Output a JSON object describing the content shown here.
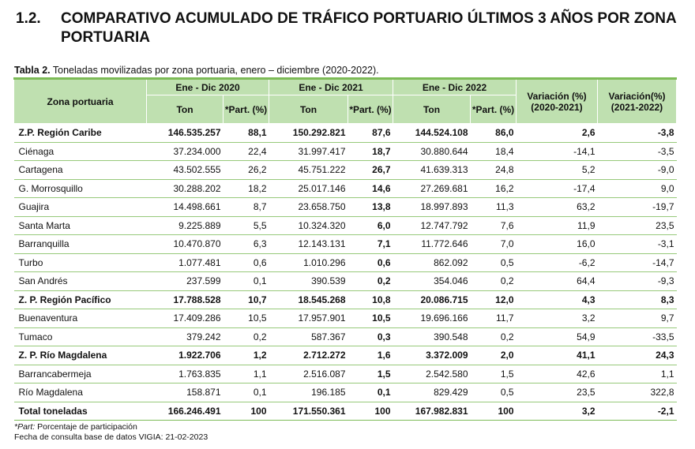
{
  "heading": {
    "number": "1.2.",
    "text": "COMPARATIVO ACUMULADO DE TRÁFICO PORTUARIO ÚLTIMOS 3 AÑOS POR ZONA PORTUARIA"
  },
  "caption": {
    "label": "Tabla 2.",
    "text": " Toneladas movilizadas por zona portuaria, enero – diciembre (2020-2022)."
  },
  "table": {
    "zone_header": "Zona portuaria",
    "periods": [
      "Ene - Dic 2020",
      "Ene - Dic 2021",
      "Ene - Dic 2022"
    ],
    "ton_label": "Ton",
    "part_label": "*Part. (%)",
    "var1_header": "Variación (%) (2020-2021)",
    "var2_header": "Variación(%) (2021-2022)",
    "rows": [
      {
        "zone": "Z.P. Región Caribe",
        "t20": "146.535.257",
        "p20": "88,1",
        "t21": "150.292.821",
        "p21": "87,6",
        "t22": "144.524.108",
        "p22": "86,0",
        "v1": "2,6",
        "v2": "-3,8",
        "bold": true
      },
      {
        "zone": "Ciénaga",
        "t20": "37.234.000",
        "p20": "22,4",
        "t21": "31.997.417",
        "p21": "18,7",
        "t22": "30.880.644",
        "p22": "18,4",
        "v1": "-14,1",
        "v2": "-3,5",
        "bold": false
      },
      {
        "zone": "Cartagena",
        "t20": "43.502.555",
        "p20": "26,2",
        "t21": "45.751.222",
        "p21": "26,7",
        "t22": "41.639.313",
        "p22": "24,8",
        "v1": "5,2",
        "v2": "-9,0",
        "bold": false
      },
      {
        "zone": "G. Morrosquillo",
        "t20": "30.288.202",
        "p20": "18,2",
        "t21": "25.017.146",
        "p21": "14,6",
        "t22": "27.269.681",
        "p22": "16,2",
        "v1": "-17,4",
        "v2": "9,0",
        "bold": false
      },
      {
        "zone": "Guajira",
        "t20": "14.498.661",
        "p20": "8,7",
        "t21": "23.658.750",
        "p21": "13,8",
        "t22": "18.997.893",
        "p22": "11,3",
        "v1": "63,2",
        "v2": "-19,7",
        "bold": false
      },
      {
        "zone": "Santa Marta",
        "t20": "9.225.889",
        "p20": "5,5",
        "t21": "10.324.320",
        "p21": "6,0",
        "t22": "12.747.792",
        "p22": "7,6",
        "v1": "11,9",
        "v2": "23,5",
        "bold": false
      },
      {
        "zone": "Barranquilla",
        "t20": "10.470.870",
        "p20": "6,3",
        "t21": "12.143.131",
        "p21": "7,1",
        "t22": "11.772.646",
        "p22": "7,0",
        "v1": "16,0",
        "v2": "-3,1",
        "bold": false
      },
      {
        "zone": "Turbo",
        "t20": "1.077.481",
        "p20": "0,6",
        "t21": "1.010.296",
        "p21": "0,6",
        "t22": "862.092",
        "p22": "0,5",
        "v1": "-6,2",
        "v2": "-14,7",
        "bold": false
      },
      {
        "zone": "San Andrés",
        "t20": "237.599",
        "p20": "0,1",
        "t21": "390.539",
        "p21": "0,2",
        "t22": "354.046",
        "p22": "0,2",
        "v1": "64,4",
        "v2": "-9,3",
        "bold": false
      },
      {
        "zone": "Z. P. Región Pacífico",
        "t20": "17.788.528",
        "p20": "10,7",
        "t21": "18.545.268",
        "p21": "10,8",
        "t22": "20.086.715",
        "p22": "12,0",
        "v1": "4,3",
        "v2": "8,3",
        "bold": true
      },
      {
        "zone": "Buenaventura",
        "t20": "17.409.286",
        "p20": "10,5",
        "t21": "17.957.901",
        "p21": "10,5",
        "t22": "19.696.166",
        "p22": "11,7",
        "v1": "3,2",
        "v2": "9,7",
        "bold": false
      },
      {
        "zone": "Tumaco",
        "t20": "379.242",
        "p20": "0,2",
        "t21": "587.367",
        "p21": "0,3",
        "t22": "390.548",
        "p22": "0,2",
        "v1": "54,9",
        "v2": "-33,5",
        "bold": false
      },
      {
        "zone": "Z. P. Río Magdalena",
        "t20": "1.922.706",
        "p20": "1,2",
        "t21": "2.712.272",
        "p21": "1,6",
        "t22": "3.372.009",
        "p22": "2,0",
        "v1": "41,1",
        "v2": "24,3",
        "bold": true
      },
      {
        "zone": "Barrancabermeja",
        "t20": "1.763.835",
        "p20": "1,1",
        "t21": "2.516.087",
        "p21": "1,5",
        "t22": "2.542.580",
        "p22": "1,5",
        "v1": "42,6",
        "v2": "1,1",
        "bold": false
      },
      {
        "zone": "Río Magdalena",
        "t20": "158.871",
        "p20": "0,1",
        "t21": "196.185",
        "p21": "0,1",
        "t22": "829.429",
        "p22": "0,5",
        "v1": "23,5",
        "v2": "322,8",
        "bold": false
      }
    ],
    "total": {
      "zone": "Total toneladas",
      "t20": "166.246.491",
      "p20": "100",
      "t21": "171.550.361",
      "p21": "100",
      "t22": "167.982.831",
      "p22": "100",
      "v1": "3,2",
      "v2": "-2,1"
    }
  },
  "notes": {
    "part_label": "*Part:",
    "part_text": " Porcentaje de participación",
    "source": "Fecha de consulta base de datos VIGIA: 21-02-2023"
  }
}
